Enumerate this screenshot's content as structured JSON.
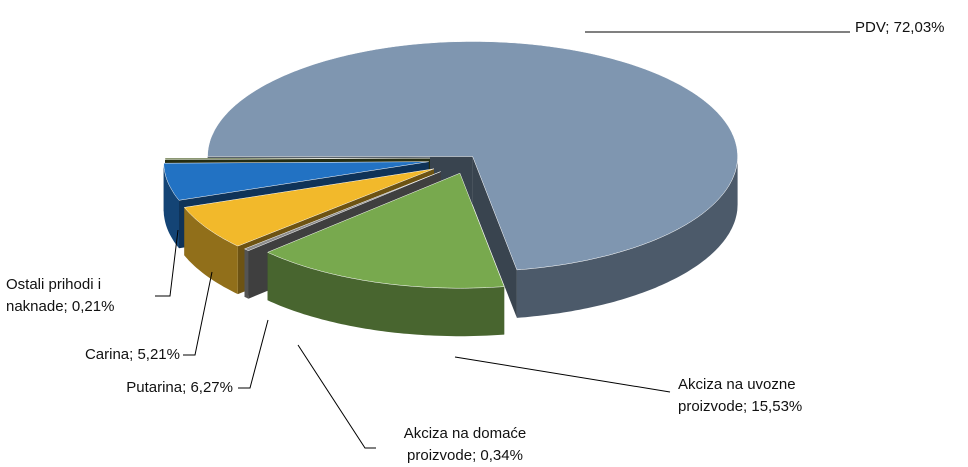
{
  "chart_data": {
    "type": "pie3d",
    "values": [
      72.03,
      15.53,
      0.34,
      6.27,
      5.21,
      0.21
    ],
    "value_labels": [
      "PDV; 72,03%",
      "Akciza na uvozne proizvode; 15,53%",
      "Akciza na domaće proizvode; 0,34%",
      "Putarina; 6,27%",
      "Carina; 5,21%",
      "Ostali prihodi i naknade; 0,21%"
    ],
    "colors": [
      "#7f96b0",
      "#78a94e",
      "#8c8c8c",
      "#f2b92b",
      "#2272c3",
      "#4f6228"
    ]
  }
}
